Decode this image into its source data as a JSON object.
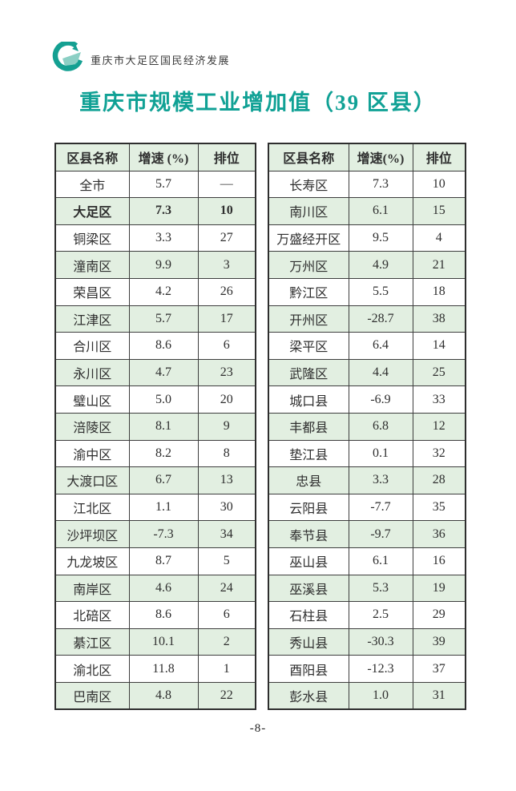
{
  "header": {
    "brand": "重庆市大足区国民经济发展",
    "logo": "teal-swirl-logo"
  },
  "title": "重庆市规模工业增加值（39 区县）",
  "footer": {
    "page_number": "-8-"
  },
  "colors": {
    "accent_teal": "#10a195",
    "logo_teal_dark": "#14a092",
    "logo_teal_light": "#8bcfc4",
    "row_green": "#e2efe1",
    "border": "#3d3d3d",
    "text": "#2e2e2e"
  },
  "tables": [
    {
      "id": "left",
      "headers": [
        "区县名称",
        "增速 (%)",
        "排位"
      ],
      "rows": [
        {
          "name": "全市",
          "rate": "5.7",
          "rank": "—",
          "em": false
        },
        {
          "name": "大足区",
          "rate": "7.3",
          "rank": "10",
          "em": true
        },
        {
          "name": "铜梁区",
          "rate": "3.3",
          "rank": "27",
          "em": false
        },
        {
          "name": "潼南区",
          "rate": "9.9",
          "rank": "3",
          "em": false
        },
        {
          "name": "荣昌区",
          "rate": "4.2",
          "rank": "26",
          "em": false
        },
        {
          "name": "江津区",
          "rate": "5.7",
          "rank": "17",
          "em": false
        },
        {
          "name": "合川区",
          "rate": "8.6",
          "rank": "6",
          "em": false
        },
        {
          "name": "永川区",
          "rate": "4.7",
          "rank": "23",
          "em": false
        },
        {
          "name": "璧山区",
          "rate": "5.0",
          "rank": "20",
          "em": false
        },
        {
          "name": "涪陵区",
          "rate": "8.1",
          "rank": "9",
          "em": false
        },
        {
          "name": "渝中区",
          "rate": "8.2",
          "rank": "8",
          "em": false
        },
        {
          "name": "大渡口区",
          "rate": "6.7",
          "rank": "13",
          "em": false
        },
        {
          "name": "江北区",
          "rate": "1.1",
          "rank": "30",
          "em": false
        },
        {
          "name": "沙坪坝区",
          "rate": "-7.3",
          "rank": "34",
          "em": false
        },
        {
          "name": "九龙坡区",
          "rate": "8.7",
          "rank": "5",
          "em": false
        },
        {
          "name": "南岸区",
          "rate": "4.6",
          "rank": "24",
          "em": false
        },
        {
          "name": "北碚区",
          "rate": "8.6",
          "rank": "6",
          "em": false
        },
        {
          "name": "綦江区",
          "rate": "10.1",
          "rank": "2",
          "em": false
        },
        {
          "name": "渝北区",
          "rate": "11.8",
          "rank": "1",
          "em": false
        },
        {
          "name": "巴南区",
          "rate": "4.8",
          "rank": "22",
          "em": false
        }
      ]
    },
    {
      "id": "right",
      "headers": [
        "区县名称",
        "增速(%)",
        "排位"
      ],
      "rows": [
        {
          "name": "长寿区",
          "rate": "7.3",
          "rank": "10",
          "em": false
        },
        {
          "name": "南川区",
          "rate": "6.1",
          "rank": "15",
          "em": false
        },
        {
          "name": "万盛经开区",
          "rate": "9.5",
          "rank": "4",
          "em": false
        },
        {
          "name": "万州区",
          "rate": "4.9",
          "rank": "21",
          "em": false
        },
        {
          "name": "黔江区",
          "rate": "5.5",
          "rank": "18",
          "em": false
        },
        {
          "name": "开州区",
          "rate": "-28.7",
          "rank": "38",
          "em": false
        },
        {
          "name": "梁平区",
          "rate": "6.4",
          "rank": "14",
          "em": false
        },
        {
          "name": "武隆区",
          "rate": "4.4",
          "rank": "25",
          "em": false
        },
        {
          "name": "城口县",
          "rate": "-6.9",
          "rank": "33",
          "em": false
        },
        {
          "name": "丰都县",
          "rate": "6.8",
          "rank": "12",
          "em": false
        },
        {
          "name": "垫江县",
          "rate": "0.1",
          "rank": "32",
          "em": false
        },
        {
          "name": "忠县",
          "rate": "3.3",
          "rank": "28",
          "em": false
        },
        {
          "name": "云阳县",
          "rate": "-7.7",
          "rank": "35",
          "em": false
        },
        {
          "name": "奉节县",
          "rate": "-9.7",
          "rank": "36",
          "em": false
        },
        {
          "name": "巫山县",
          "rate": "6.1",
          "rank": "16",
          "em": false
        },
        {
          "name": "巫溪县",
          "rate": "5.3",
          "rank": "19",
          "em": false
        },
        {
          "name": "石柱县",
          "rate": "2.5",
          "rank": "29",
          "em": false
        },
        {
          "name": "秀山县",
          "rate": "-30.3",
          "rank": "39",
          "em": false
        },
        {
          "name": "酉阳县",
          "rate": "-12.3",
          "rank": "37",
          "em": false
        },
        {
          "name": "彭水县",
          "rate": "1.0",
          "rank": "31",
          "em": false
        }
      ]
    }
  ]
}
